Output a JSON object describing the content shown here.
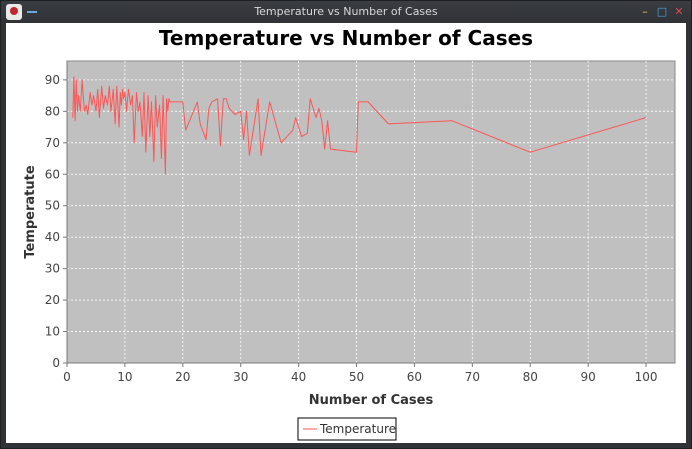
{
  "window": {
    "title": "Temperature vs Number of Cases",
    "buttons": {
      "minimize": "–",
      "maximize": "□",
      "close": "✕"
    },
    "icons": {
      "app": "app-icon",
      "menu": "menu-icon"
    }
  },
  "colors": {
    "series": "#ff5555",
    "plot_background": "#c0c0c0",
    "grid": "#ffffff"
  },
  "chart_data": {
    "type": "line",
    "title": "Temperature vs Number of Cases",
    "xlabel": "Number of Cases",
    "ylabel": "Temperatute",
    "xlim": [
      0,
      105
    ],
    "ylim": [
      0,
      96
    ],
    "xticks": [
      "0",
      "10",
      "20",
      "30",
      "40",
      "50",
      "60",
      "70",
      "80",
      "90",
      "100"
    ],
    "yticks": [
      "0",
      "10",
      "20",
      "30",
      "40",
      "50",
      "60",
      "70",
      "80",
      "90"
    ],
    "grid": true,
    "legend": "bottom-center",
    "series": [
      {
        "name": "Temperature",
        "x": [
          1,
          1.2,
          1.4,
          1.6,
          1.8,
          2,
          2.3,
          2.6,
          3,
          3.3,
          3.6,
          4,
          4.3,
          4.6,
          5,
          5.3,
          5.6,
          6,
          6.3,
          6.6,
          7,
          7.3,
          7.6,
          8,
          8.3,
          8.6,
          9,
          9.2,
          9.4,
          9.6,
          9.8,
          10,
          10.3,
          10.6,
          11,
          11.3,
          11.6,
          12,
          12.3,
          12.6,
          13,
          13.3,
          13.6,
          14,
          14.3,
          14.6,
          15,
          15.3,
          15.6,
          16,
          16.3,
          16.6,
          17,
          17.2,
          17.4,
          17.6,
          17.8,
          18,
          20,
          20.5,
          22.5,
          23,
          24,
          24.5,
          25,
          26,
          26.5,
          27,
          27.5,
          28,
          29,
          30,
          30.5,
          31,
          31.5,
          33,
          33.5,
          35,
          37,
          39,
          39.5,
          40.5,
          41.5,
          42,
          43,
          43.5,
          44,
          44.5,
          45,
          45.5,
          50,
          50.3,
          52,
          55.5,
          66.5,
          80,
          100
        ],
        "y": [
          78,
          91,
          77,
          90,
          80,
          85,
          80,
          90,
          80,
          82,
          79,
          86,
          82,
          85,
          80,
          87,
          78,
          88,
          81,
          85,
          82,
          88,
          80,
          87,
          76,
          88,
          75,
          86,
          82,
          87,
          84,
          86,
          80,
          87,
          82,
          85,
          70,
          86,
          80,
          83,
          72,
          86,
          67,
          85,
          72,
          83,
          64,
          85,
          75,
          82,
          65,
          85,
          60,
          84,
          80,
          84,
          83,
          83,
          83,
          74,
          83,
          76,
          71,
          81,
          83,
          84,
          69,
          84,
          84,
          81,
          79,
          80,
          71,
          80,
          66,
          84,
          66,
          83,
          70,
          74,
          78,
          72,
          73,
          84,
          78,
          81,
          77,
          68,
          77,
          68,
          67,
          83,
          83,
          76,
          77,
          67,
          78
        ]
      }
    ]
  }
}
